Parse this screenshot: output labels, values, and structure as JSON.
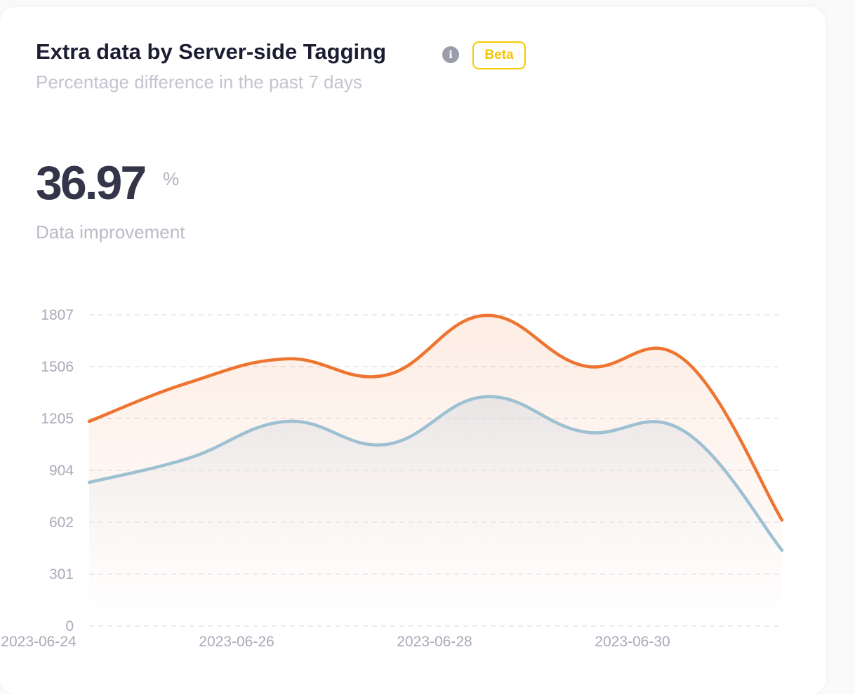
{
  "header": {
    "title": "Extra data by Server-side Tagging",
    "info_icon": "info-icon",
    "badge": "Beta",
    "subtitle": "Percentage difference in the past 7 days"
  },
  "kpi": {
    "value": "36.97",
    "unit": "%",
    "label": "Data improvement"
  },
  "colors": {
    "orange": "#ee7430",
    "blue": "#9dc0d2",
    "badge": "#f9c800"
  },
  "chart_data": {
    "type": "area",
    "x": [
      "2023-06-24",
      "2023-06-25",
      "2023-06-26",
      "2023-06-27",
      "2023-06-28",
      "2023-06-29",
      "2023-06-30",
      "2023-07-01"
    ],
    "x_tick_labels": [
      "2023-06-24",
      "2023-06-26",
      "2023-06-28",
      "2023-06-30"
    ],
    "y_tick_labels": [
      "0",
      "301",
      "602",
      "904",
      "1205",
      "1506",
      "1807"
    ],
    "ylim": [
      0,
      1807
    ],
    "grid": true,
    "series": [
      {
        "color": "#ee7430",
        "values": [
          1188,
          1412,
          1551,
          1457,
          1803,
          1510,
          1551,
          615
        ]
      },
      {
        "color": "#9dc0d2",
        "values": [
          834,
          973,
          1188,
          1054,
          1331,
          1127,
          1135,
          440
        ]
      }
    ]
  }
}
